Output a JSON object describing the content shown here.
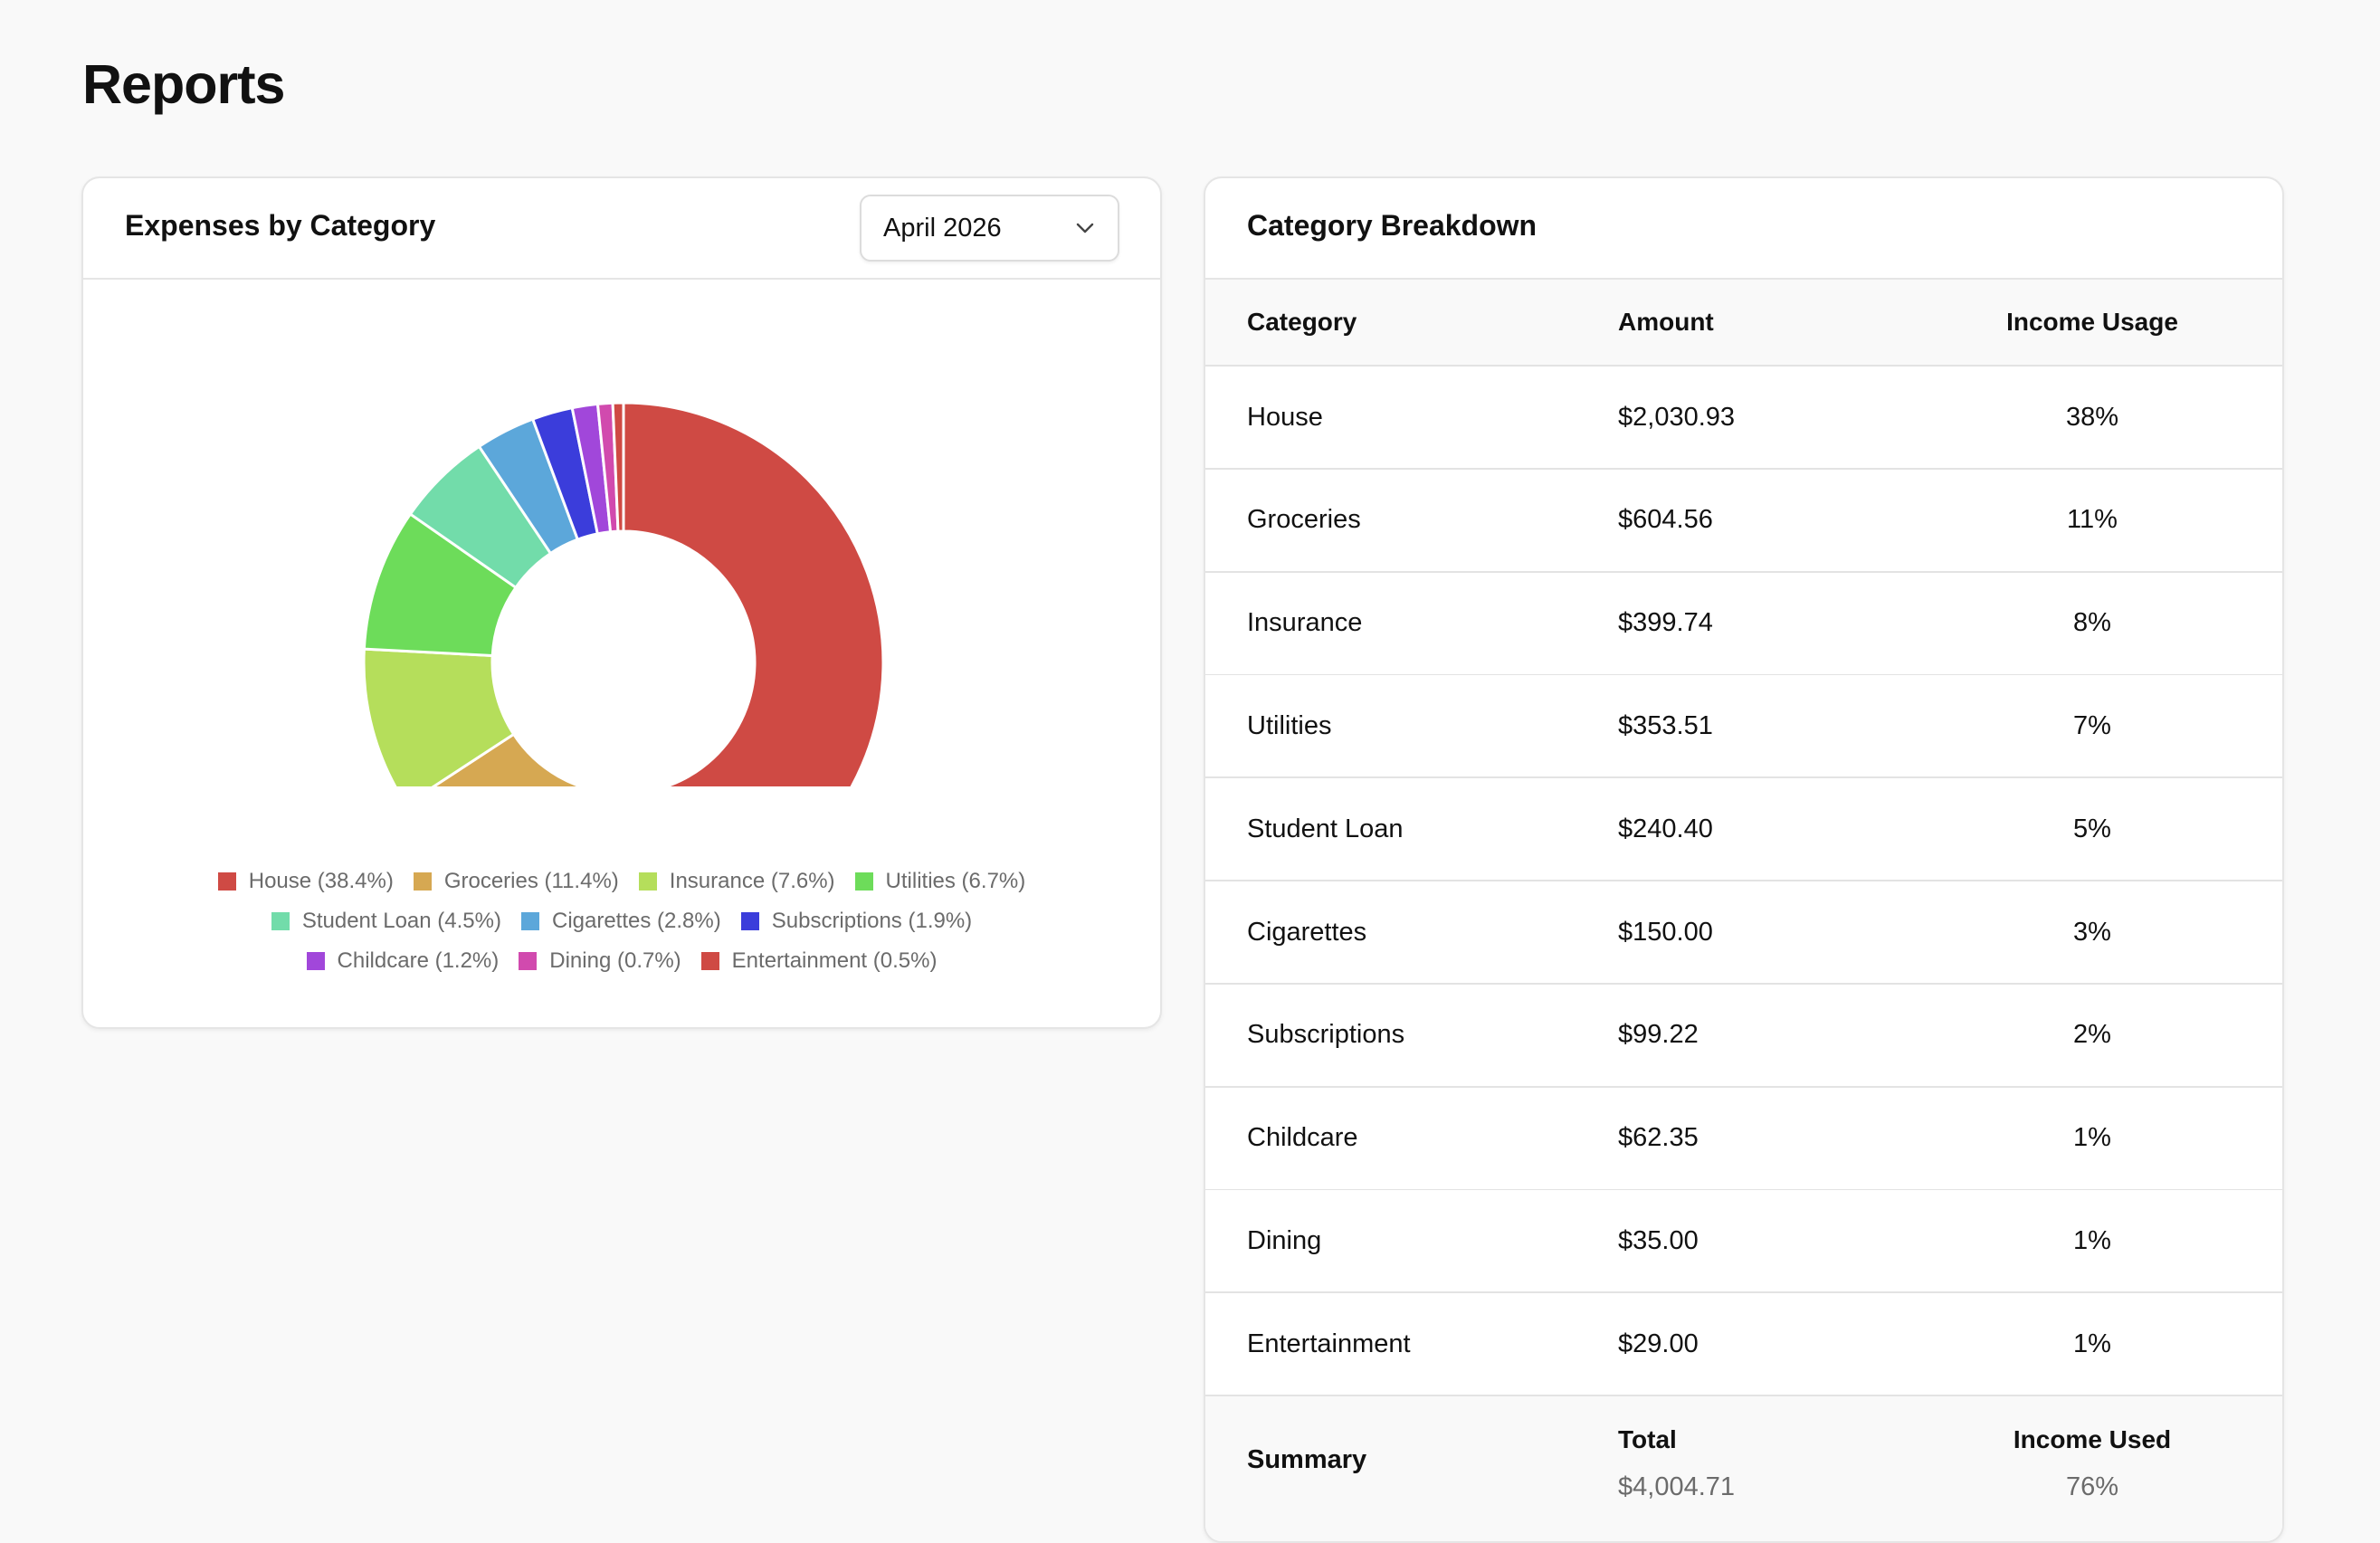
{
  "page": {
    "title": "Reports"
  },
  "colors": {
    "house": "#cf4a44",
    "groceries": "#d6a852",
    "insurance": "#b5de5b",
    "utilities": "#6ddc5a",
    "student_loan": "#72dcaa",
    "cigarettes": "#5ca7da",
    "subscriptions": "#3b3ddb",
    "childcare": "#a147da",
    "dining": "#d14aae",
    "entertainment": "#cf4a44"
  },
  "expenses_card": {
    "title": "Expenses by Category",
    "month_select": {
      "value": "April 2026",
      "icon": "chevron-down-icon"
    }
  },
  "chart_data": {
    "type": "pie",
    "donut": true,
    "categories": [
      "House",
      "Groceries",
      "Insurance",
      "Utilities",
      "Student Loan",
      "Cigarettes",
      "Subscriptions",
      "Childcare",
      "Dining",
      "Entertainment"
    ],
    "values": [
      38.4,
      11.4,
      7.6,
      6.7,
      4.5,
      2.8,
      1.9,
      1.2,
      0.7,
      0.5
    ],
    "legend_labels": [
      "House (38.4%)",
      "Groceries (11.4%)",
      "Insurance (7.6%)",
      "Utilities (6.7%)",
      "Student Loan (4.5%)",
      "Cigarettes (2.8%)",
      "Subscriptions (1.9%)",
      "Childcare (1.2%)",
      "Dining (0.7%)",
      "Entertainment (0.5%)"
    ],
    "legend_rows": [
      [
        0,
        1,
        2,
        3
      ],
      [
        4,
        5,
        6
      ],
      [
        7,
        8,
        9
      ]
    ],
    "colors": [
      "#cf4a44",
      "#d6a852",
      "#b5de5b",
      "#6ddc5a",
      "#72dcaa",
      "#5ca7da",
      "#3b3ddb",
      "#a147da",
      "#d14aae",
      "#cf4a44"
    ],
    "legend_placement": "bottom"
  },
  "breakdown_card": {
    "title": "Category Breakdown",
    "columns": [
      "Category",
      "Amount",
      "Income Usage"
    ],
    "rows": [
      {
        "category": "House",
        "amount": "$2,030.93",
        "usage": "38%"
      },
      {
        "category": "Groceries",
        "amount": "$604.56",
        "usage": "11%"
      },
      {
        "category": "Insurance",
        "amount": "$399.74",
        "usage": "8%"
      },
      {
        "category": "Utilities",
        "amount": "$353.51",
        "usage": "7%"
      },
      {
        "category": "Student Loan",
        "amount": "$240.40",
        "usage": "5%"
      },
      {
        "category": "Cigarettes",
        "amount": "$150.00",
        "usage": "3%"
      },
      {
        "category": "Subscriptions",
        "amount": "$99.22",
        "usage": "2%"
      },
      {
        "category": "Childcare",
        "amount": "$62.35",
        "usage": "1%"
      },
      {
        "category": "Dining",
        "amount": "$35.00",
        "usage": "1%"
      },
      {
        "category": "Entertainment",
        "amount": "$29.00",
        "usage": "1%"
      }
    ],
    "summary": {
      "label": "Summary",
      "total_label": "Total",
      "total_value": "$4,004.71",
      "income_label": "Income Used",
      "income_value": "76%"
    }
  }
}
